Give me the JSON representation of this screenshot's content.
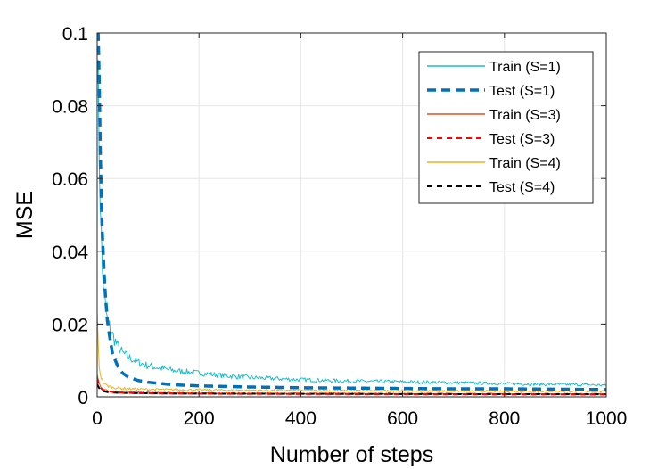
{
  "chart_data": {
    "type": "line",
    "title": "",
    "xlabel": "Number of steps",
    "ylabel": "MSE",
    "xlim": [
      0,
      1000
    ],
    "ylim": [
      0,
      0.1
    ],
    "xticks": [
      0,
      200,
      400,
      600,
      800,
      1000
    ],
    "xtick_labels": [
      "0",
      "200",
      "400",
      "600",
      "800",
      "1000"
    ],
    "yticks": [
      0,
      0.02,
      0.04,
      0.06,
      0.08,
      0.1
    ],
    "ytick_labels": [
      "0",
      "0.02",
      "0.04",
      "0.06",
      "0.08",
      "0.1"
    ],
    "grid": true,
    "legend_position": "top-right",
    "series": [
      {
        "name": "Train (S=1)",
        "color": "#17becf",
        "style": "solid",
        "noisy": true,
        "x": [
          0,
          5,
          10,
          15,
          20,
          30,
          40,
          50,
          60,
          80,
          100,
          150,
          200,
          250,
          300,
          400,
          500,
          600,
          700,
          800,
          900,
          1000
        ],
        "y": [
          0.1,
          0.06,
          0.035,
          0.026,
          0.021,
          0.017,
          0.014,
          0.012,
          0.011,
          0.0095,
          0.0085,
          0.0072,
          0.0065,
          0.0058,
          0.0053,
          0.0047,
          0.0043,
          0.0041,
          0.0039,
          0.0036,
          0.0034,
          0.0032
        ]
      },
      {
        "name": "Test (S=1)",
        "color": "#0072bd",
        "style": "dashed-thick",
        "x": [
          0,
          3,
          5,
          8,
          10,
          15,
          20,
          25,
          30,
          40,
          50,
          60,
          80,
          100,
          150,
          200,
          300,
          400,
          500,
          600,
          700,
          800,
          900,
          1000
        ],
        "y": [
          0.1,
          0.1,
          0.075,
          0.055,
          0.045,
          0.03,
          0.021,
          0.016,
          0.012,
          0.0085,
          0.0065,
          0.0055,
          0.0045,
          0.004,
          0.0033,
          0.003,
          0.0027,
          0.0025,
          0.0024,
          0.0023,
          0.0022,
          0.0022,
          0.0021,
          0.002
        ]
      },
      {
        "name": "Train (S=3)",
        "color": "#d95319",
        "style": "solid",
        "noisy": true,
        "x": [
          0,
          3,
          6,
          10,
          20,
          40,
          80,
          150,
          300,
          500,
          700,
          1000
        ],
        "y": [
          0.006,
          0.004,
          0.003,
          0.0022,
          0.0017,
          0.0014,
          0.0012,
          0.0011,
          0.001,
          0.00095,
          0.0009,
          0.00085
        ]
      },
      {
        "name": "Test (S=3)",
        "color": "#ff0000",
        "style": "dashed",
        "x": [
          0,
          3,
          6,
          10,
          20,
          40,
          80,
          150,
          300,
          500,
          700,
          1000
        ],
        "y": [
          0.005,
          0.0035,
          0.0027,
          0.002,
          0.0015,
          0.0012,
          0.001,
          0.0009,
          0.0008,
          0.00075,
          0.0007,
          0.00065
        ]
      },
      {
        "name": "Train (S=4)",
        "color": "#edb120",
        "style": "solid",
        "noisy": true,
        "x": [
          0,
          2,
          4,
          6,
          10,
          15,
          20,
          30,
          50,
          80,
          120,
          200,
          300,
          500,
          700,
          1000
        ],
        "y": [
          0.021,
          0.014,
          0.009,
          0.0065,
          0.0045,
          0.0035,
          0.003,
          0.0026,
          0.0023,
          0.0021,
          0.002,
          0.0019,
          0.0018,
          0.0017,
          0.0016,
          0.0015
        ]
      },
      {
        "name": "Test (S=4)",
        "color": "#000000",
        "style": "dashed",
        "x": [
          0,
          3,
          6,
          10,
          20,
          40,
          80,
          150,
          300,
          500,
          700,
          1000
        ],
        "y": [
          0.0035,
          0.0026,
          0.002,
          0.0016,
          0.0013,
          0.0011,
          0.001,
          0.0009,
          0.00085,
          0.0008,
          0.00075,
          0.0007
        ]
      }
    ]
  }
}
